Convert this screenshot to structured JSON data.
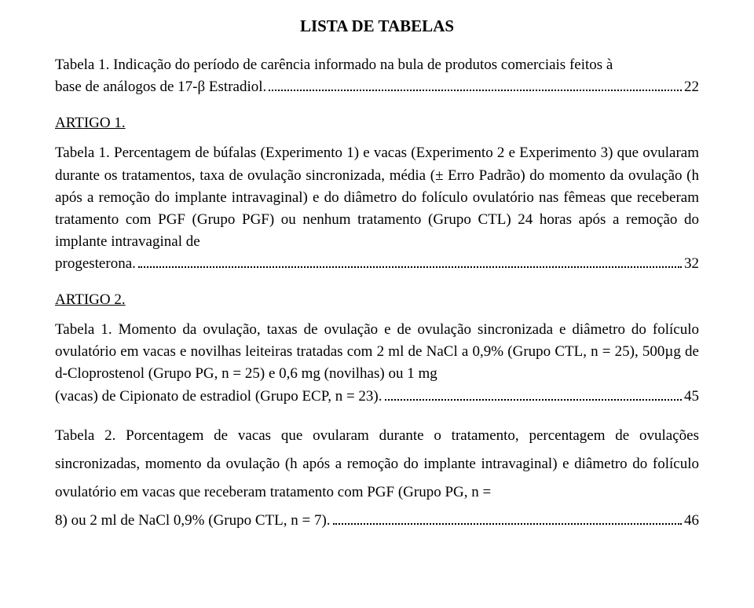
{
  "colors": {
    "text": "#000000",
    "background": "#ffffff"
  },
  "typography": {
    "family": "Times New Roman",
    "title_size_pt": 16,
    "body_size_pt": 14
  },
  "title": "LISTA DE TABELAS",
  "entries": [
    {
      "text_lines": [
        "Tabela 1. Indicação do período de carência informado na bula de produtos comerciais feitos à base de análogos de 17-β Estradiol."
      ],
      "page": "22"
    }
  ],
  "artigo1_label": "ARTIGO 1.",
  "artigo1_entry": {
    "body": "Tabela 1. Percentagem de búfalas (Experimento 1) e vacas (Experimento 2 e Experimento 3) que ovularam durante os tratamentos, taxa de ovulação sincronizada, média (± Erro Padrão) do momento da ovulação (h após a remoção do implante intravaginal) e do diâmetro do folículo ovulatório nas fêmeas que receberam tratamento com PGF (Grupo PGF) ou nenhum tratamento (Grupo CTL) 24 horas após a remoção do implante intravaginal de progesterona.",
    "page": "32"
  },
  "artigo2_label": "ARTIGO 2.",
  "artigo2_entry1": {
    "body": "Tabela 1. Momento da ovulação, taxas de ovulação e de ovulação sincronizada e diâmetro do folículo ovulatório em vacas e novilhas leiteiras tratadas com 2 ml de NaCl a 0,9% (Grupo CTL, n = 25), 500µg de d-Cloprostenol (Grupo PG, n = 25) e 0,6 mg (novilhas) ou 1 mg (vacas) de Cipionato de estradiol (Grupo ECP, n = 23).",
    "page": "45"
  },
  "artigo2_entry2": {
    "body": "Tabela 2. Porcentagem de vacas que ovularam durante o tratamento, percentagem de ovulações sincronizadas, momento da ovulação (h após a remoção do implante intravaginal) e diâmetro do folículo ovulatório em vacas que receberam tratamento com PGF (Grupo PG, n = 8) ou 2 ml de NaCl 0,9% (Grupo CTL, n = 7).",
    "page": "46"
  }
}
